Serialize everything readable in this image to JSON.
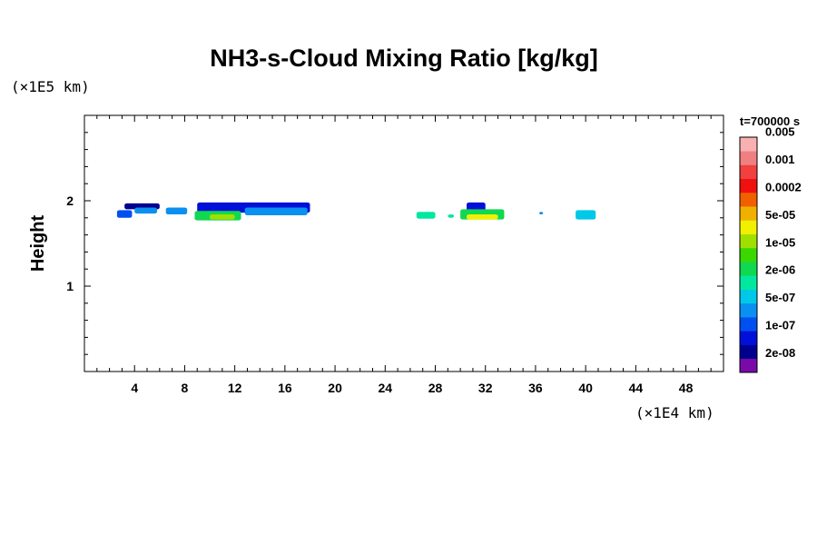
{
  "chart_data": {
    "type": "heatmap",
    "title": "NH3-s-Cloud Mixing Ratio [kg/kg]",
    "ylabel": "Height",
    "xlabel": "",
    "x_scale_label": "(×1E4 km)",
    "y_scale_label": "(×1E5 km)",
    "xlim": [
      0,
      51
    ],
    "ylim": [
      0,
      3
    ],
    "x_ticks": [
      4,
      8,
      12,
      16,
      20,
      24,
      28,
      32,
      36,
      40,
      44,
      48
    ],
    "x_tick_labels": [
      "4",
      "8",
      "12",
      "16",
      "20",
      "24",
      "28",
      "32",
      "36",
      "40",
      "44",
      "48"
    ],
    "y_ticks": [
      1,
      2
    ],
    "y_tick_labels": [
      "1",
      "2"
    ],
    "time_label": "t=700000 s",
    "colorbar": {
      "colors": [
        "#7a0aa8",
        "#00008f",
        "#0010d8",
        "#0050f0",
        "#0a90f0",
        "#00c8e8",
        "#00e8a0",
        "#10d850",
        "#3ad800",
        "#a0e000",
        "#f0f000",
        "#f0b000",
        "#f06000",
        "#f01010",
        "#f04040",
        "#f08080",
        "#f8b0b0"
      ],
      "labels": [
        "2e-08",
        "1e-07",
        "5e-07",
        "2e-06",
        "1e-05",
        "5e-05",
        "0.0002",
        "0.001",
        "0.005"
      ]
    },
    "cloud_blobs": [
      {
        "x": [
          2.6,
          3.8
        ],
        "y": [
          1.8,
          1.89
        ],
        "level": 3
      },
      {
        "x": [
          3.2,
          6.0
        ],
        "y": [
          1.9,
          1.97
        ],
        "level": 1
      },
      {
        "x": [
          4.0,
          5.8
        ],
        "y": [
          1.85,
          1.92
        ],
        "level": 4
      },
      {
        "x": [
          6.5,
          8.2
        ],
        "y": [
          1.84,
          1.92
        ],
        "level": 4
      },
      {
        "x": [
          9.0,
          18.0
        ],
        "y": [
          1.86,
          1.98
        ],
        "level": 2
      },
      {
        "x": [
          8.8,
          12.5
        ],
        "y": [
          1.77,
          1.88
        ],
        "level": 7
      },
      {
        "x": [
          10.0,
          12.0
        ],
        "y": [
          1.78,
          1.84
        ],
        "level": 9
      },
      {
        "x": [
          12.8,
          17.8
        ],
        "y": [
          1.83,
          1.92
        ],
        "level": 4
      },
      {
        "x": [
          26.5,
          28.0
        ],
        "y": [
          1.79,
          1.87
        ],
        "level": 6
      },
      {
        "x": [
          29.0,
          29.5
        ],
        "y": [
          1.8,
          1.84
        ],
        "level": 6
      },
      {
        "x": [
          30.5,
          32.0
        ],
        "y": [
          1.87,
          1.98
        ],
        "level": 2
      },
      {
        "x": [
          30.0,
          33.5
        ],
        "y": [
          1.78,
          1.9
        ],
        "level": 7
      },
      {
        "x": [
          30.5,
          33.0
        ],
        "y": [
          1.78,
          1.84
        ],
        "level": 10
      },
      {
        "x": [
          36.3,
          36.6
        ],
        "y": [
          1.84,
          1.87
        ],
        "level": 4
      },
      {
        "x": [
          39.2,
          40.8
        ],
        "y": [
          1.78,
          1.89
        ],
        "level": 5
      }
    ]
  }
}
